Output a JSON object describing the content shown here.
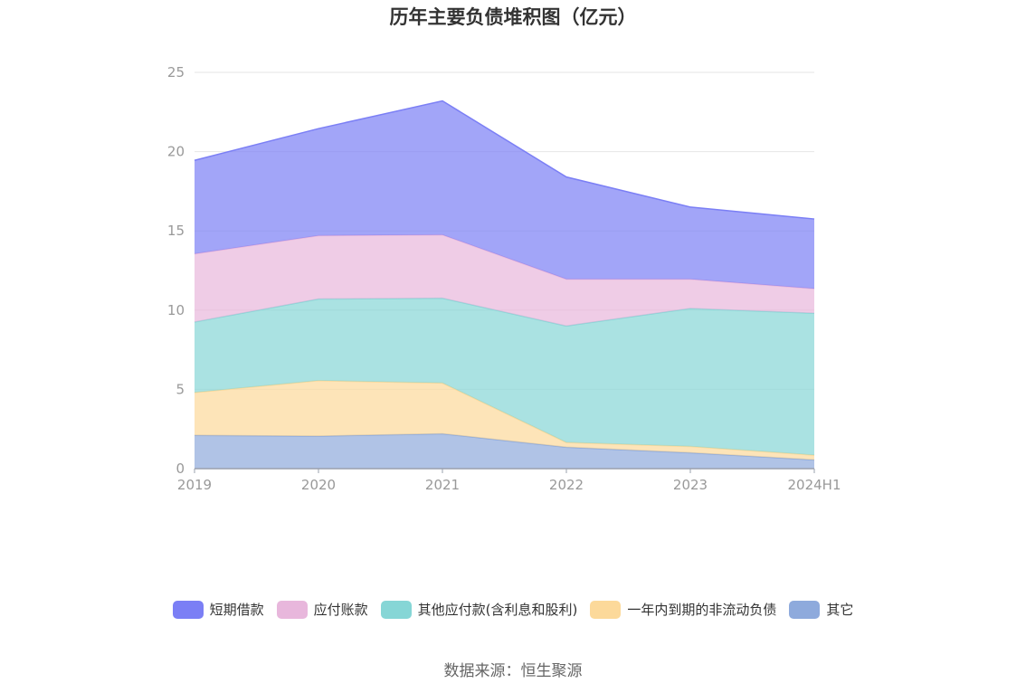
{
  "chart_data": {
    "type": "area",
    "stacked": true,
    "title": "历年主要负债堆积图（亿元）",
    "categories": [
      "2019",
      "2020",
      "2021",
      "2022",
      "2023",
      "2024H1"
    ],
    "y_ticks": [
      "0",
      "5",
      "10",
      "15",
      "20",
      "25"
    ],
    "ylim": [
      0,
      25
    ],
    "grid": true,
    "legend_position": "bottom",
    "series": [
      {
        "name": "其它",
        "color": "#8eaadc",
        "values": [
          2.1,
          2.05,
          2.2,
          1.35,
          1.0,
          0.55
        ]
      },
      {
        "name": "一年内到期的非流动负债",
        "color": "#fcd99a",
        "values": [
          2.7,
          3.5,
          3.2,
          0.3,
          0.4,
          0.3
        ]
      },
      {
        "name": "其他应付款(含利息和股利)",
        "color": "#86d6d6",
        "values": [
          4.45,
          5.15,
          5.35,
          7.35,
          8.7,
          8.95
        ]
      },
      {
        "name": "应付账款",
        "color": "#e8b7dc",
        "values": [
          4.3,
          4.0,
          4.0,
          2.95,
          1.85,
          1.55
        ]
      },
      {
        "name": "短期借款",
        "color": "#7b7ff5",
        "values": [
          5.9,
          6.75,
          8.45,
          6.45,
          4.55,
          4.4
        ]
      }
    ]
  },
  "legend_order": [
    "短期借款",
    "应付账款",
    "其他应付款(含利息和股利)",
    "一年内到期的非流动负债",
    "其它"
  ],
  "source": "数据来源：恒生聚源"
}
